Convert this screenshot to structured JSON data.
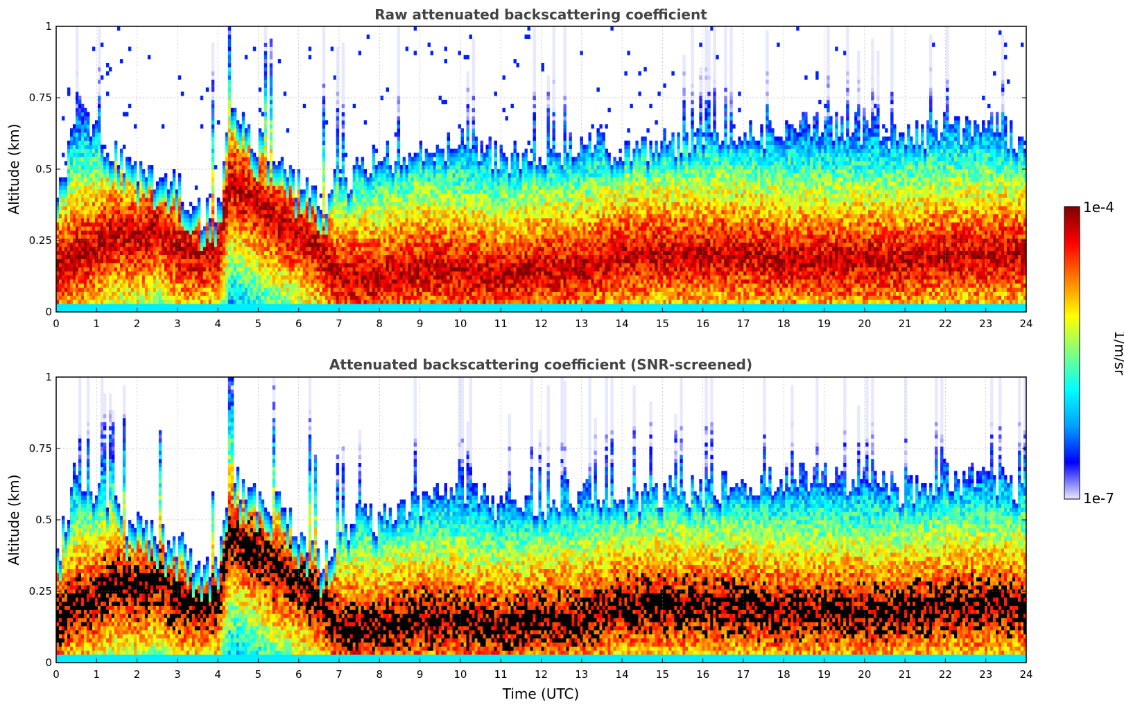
{
  "figure": {
    "colorbar": {
      "label": "1/m/sr",
      "max_label": "1e-4",
      "min_label": "1e-7",
      "scale": "log",
      "range": [
        1e-07,
        0.0001
      ],
      "colormap": "jet",
      "colors": [
        "#e8e8ff",
        "#0000ff",
        "#00a0ff",
        "#00ffff",
        "#80ff80",
        "#ffff00",
        "#ff8000",
        "#ff0000",
        "#800000"
      ]
    }
  },
  "chart_data": [
    {
      "type": "heatmap",
      "title": "Raw attenuated backscattering coefficient",
      "xlabel": "",
      "ylabel": "Altitude (km)",
      "x_ticks": [
        "0",
        "1",
        "2",
        "3",
        "4",
        "5",
        "6",
        "7",
        "8",
        "9",
        "10",
        "11",
        "12",
        "13",
        "14",
        "15",
        "16",
        "17",
        "18",
        "19",
        "20",
        "21",
        "22",
        "23",
        "24"
      ],
      "y_ticks": [
        "0",
        "0.25",
        "0.5",
        "0.75",
        "1"
      ],
      "xlim": [
        0,
        24
      ],
      "ylim": [
        0,
        1
      ],
      "grid": true,
      "screened": false,
      "profile": {
        "time_utc": [
          0,
          0.5,
          1,
          1.5,
          2,
          2.5,
          3,
          3.5,
          4,
          4.3,
          5,
          5.5,
          6,
          6.5,
          7,
          7.5,
          8,
          9,
          10,
          11,
          12,
          13,
          14,
          15,
          16,
          17,
          18,
          19,
          20,
          21,
          22,
          23,
          24
        ],
        "signal_top_km": [
          0.35,
          0.72,
          0.62,
          0.55,
          0.5,
          0.48,
          0.45,
          0.35,
          0.35,
          0.68,
          0.6,
          0.55,
          0.45,
          0.38,
          0.45,
          0.5,
          0.55,
          0.55,
          0.6,
          0.55,
          0.55,
          0.6,
          0.55,
          0.6,
          0.6,
          0.6,
          0.65,
          0.65,
          0.65,
          0.6,
          0.65,
          0.65,
          0.6
        ],
        "peak_layer_km": [
          0.15,
          0.2,
          0.22,
          0.28,
          0.25,
          0.3,
          0.22,
          0.2,
          0.22,
          0.45,
          0.38,
          0.32,
          0.28,
          0.22,
          0.12,
          0.12,
          0.12,
          0.15,
          0.15,
          0.12,
          0.15,
          0.15,
          0.2,
          0.2,
          0.2,
          0.2,
          0.18,
          0.18,
          0.18,
          0.18,
          0.2,
          0.2,
          0.2
        ]
      }
    },
    {
      "type": "heatmap",
      "title": "Attenuated backscattering coefficient (SNR-screened)",
      "xlabel": "Time (UTC)",
      "ylabel": "Altitude (km)",
      "x_ticks": [
        "0",
        "1",
        "2",
        "3",
        "4",
        "5",
        "6",
        "7",
        "8",
        "9",
        "10",
        "11",
        "12",
        "13",
        "14",
        "15",
        "16",
        "17",
        "18",
        "19",
        "20",
        "21",
        "22",
        "23",
        "24"
      ],
      "y_ticks": [
        "0",
        "0.25",
        "0.5",
        "0.75",
        "1"
      ],
      "xlim": [
        0,
        24
      ],
      "ylim": [
        0,
        1
      ],
      "grid": true,
      "screened": true,
      "profile": {
        "time_utc": [
          0,
          0.5,
          1,
          1.5,
          2,
          2.5,
          3,
          3.5,
          4,
          4.3,
          5,
          5.5,
          6,
          6.5,
          7,
          7.5,
          8,
          9,
          10,
          11,
          12,
          13,
          14,
          15,
          16,
          17,
          18,
          19,
          20,
          21,
          22,
          23,
          24
        ],
        "signal_top_km": [
          0.35,
          0.68,
          0.58,
          0.52,
          0.48,
          0.45,
          0.42,
          0.33,
          0.33,
          0.65,
          0.58,
          0.55,
          0.45,
          0.36,
          0.45,
          0.5,
          0.5,
          0.55,
          0.6,
          0.55,
          0.55,
          0.6,
          0.55,
          0.6,
          0.6,
          0.62,
          0.65,
          0.65,
          0.65,
          0.6,
          0.65,
          0.65,
          0.6
        ],
        "peak_layer_km": [
          0.15,
          0.2,
          0.22,
          0.28,
          0.25,
          0.3,
          0.22,
          0.2,
          0.22,
          0.45,
          0.38,
          0.32,
          0.28,
          0.22,
          0.12,
          0.12,
          0.12,
          0.15,
          0.15,
          0.12,
          0.15,
          0.15,
          0.2,
          0.2,
          0.2,
          0.2,
          0.18,
          0.18,
          0.18,
          0.18,
          0.2,
          0.2,
          0.2
        ]
      }
    }
  ]
}
